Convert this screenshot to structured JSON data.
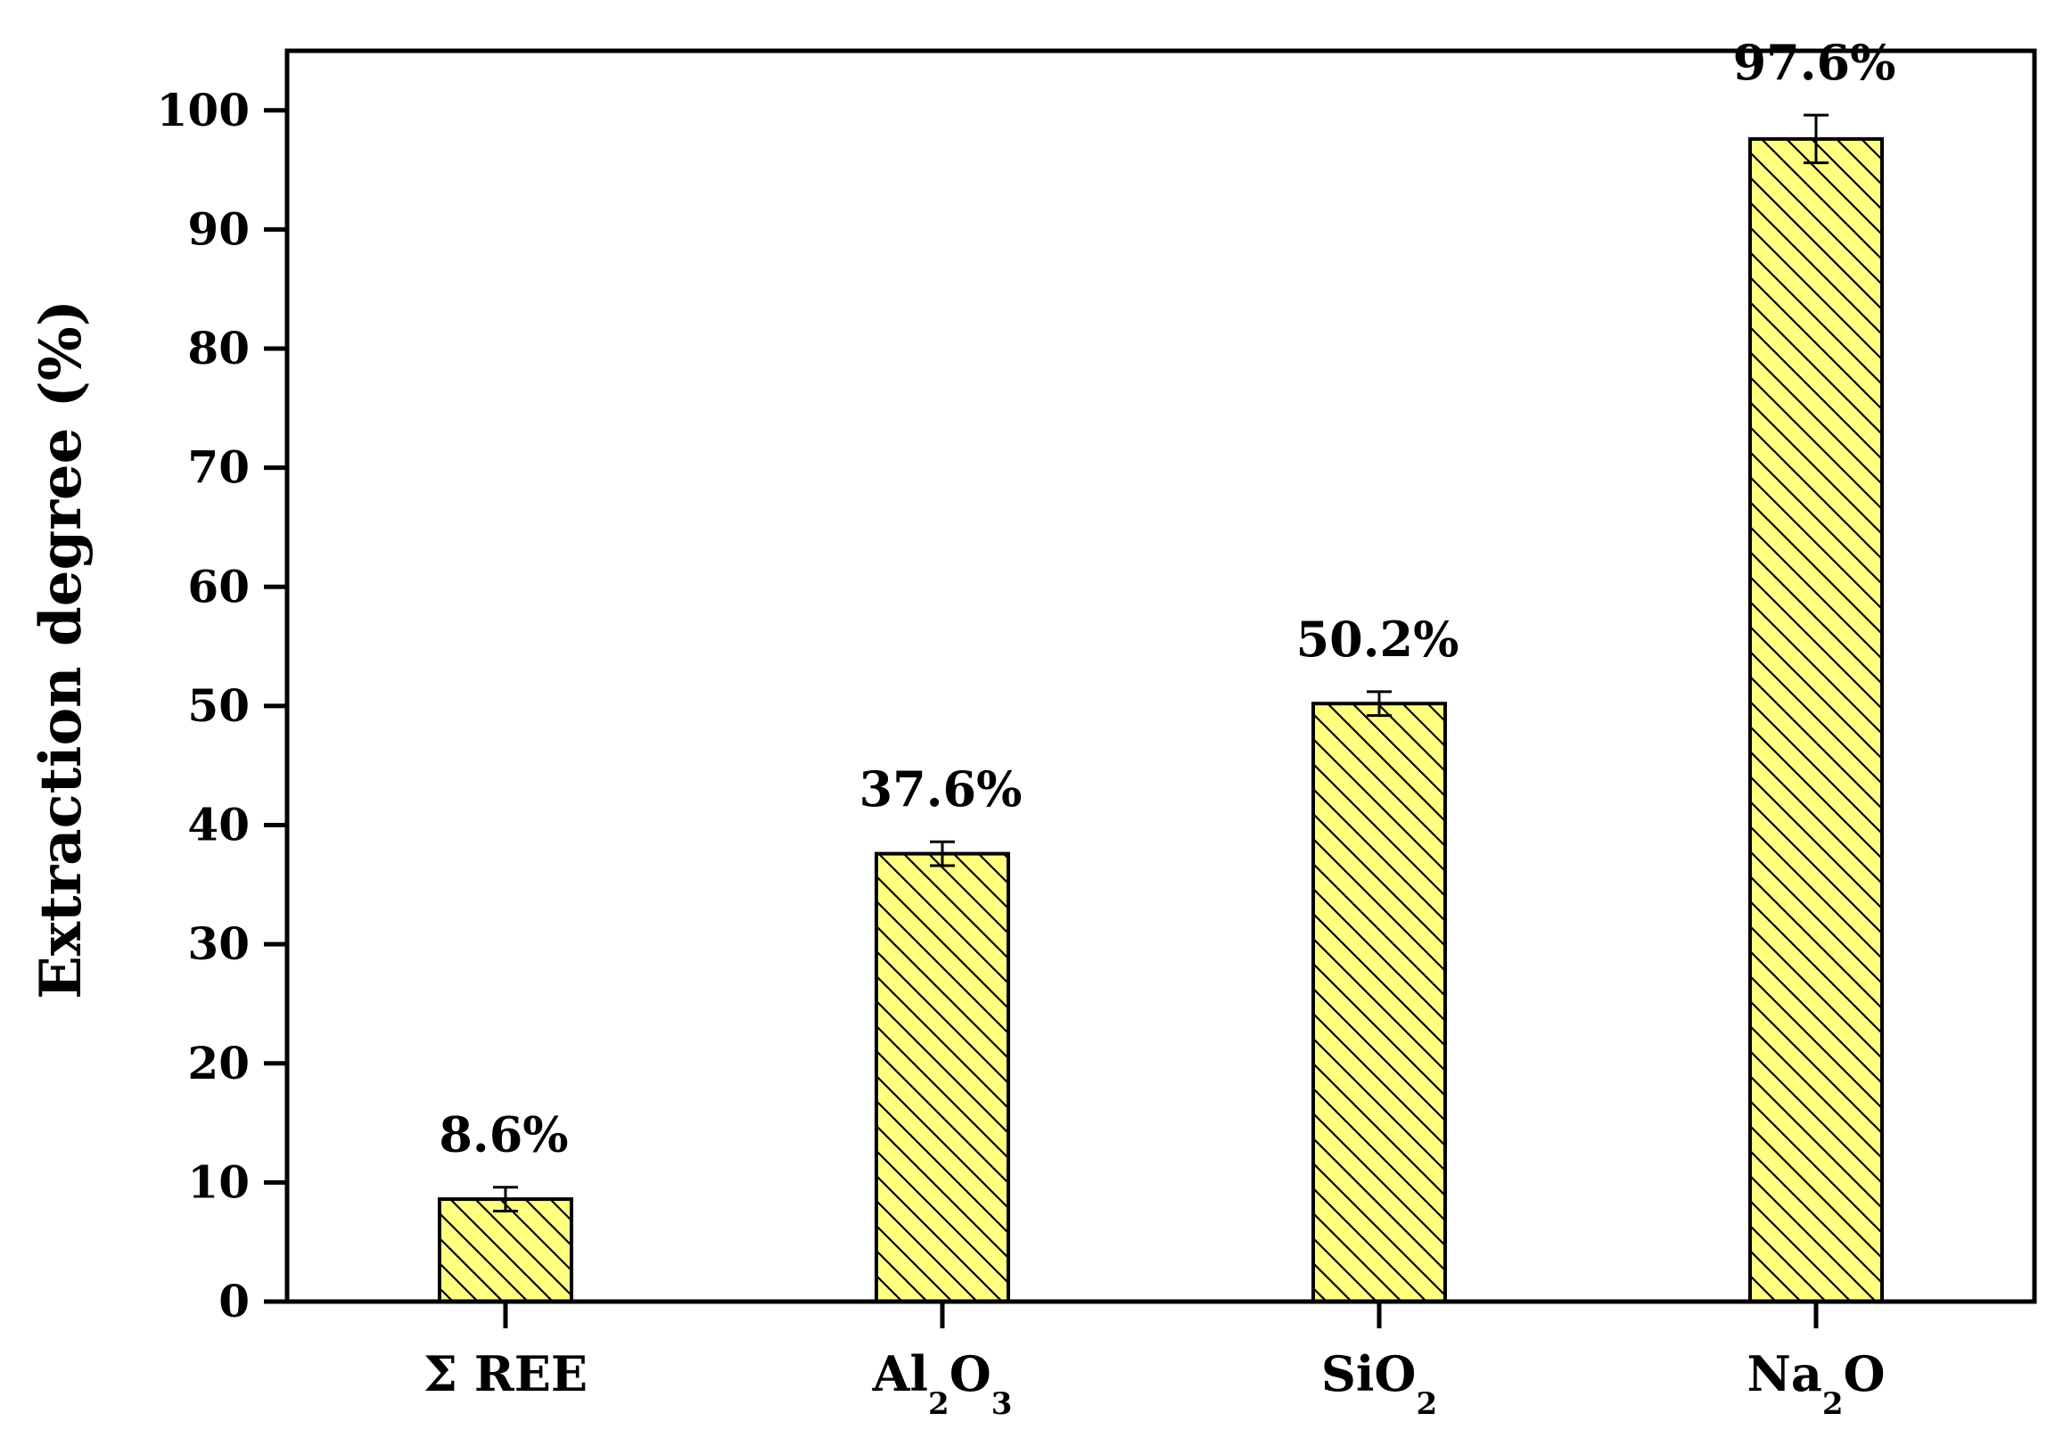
{
  "chart_data": {
    "type": "bar",
    "title": "",
    "xlabel": "",
    "ylabel": "Extraction degree (%)",
    "ylim": [
      0,
      105
    ],
    "yticks": [
      0,
      10,
      20,
      30,
      40,
      50,
      60,
      70,
      80,
      90,
      100
    ],
    "grid": false,
    "legend": "none",
    "bar_color": "#FFFF80",
    "hatch_color": "#000000",
    "categories": [
      {
        "label": "Σ REE",
        "base": "Σ REE",
        "parts": [
          {
            "t": "Σ REE",
            "sub": false
          }
        ]
      },
      {
        "label": "Al2O3",
        "base": "Al₂O₃",
        "parts": [
          {
            "t": "Al",
            "sub": false
          },
          {
            "t": "2",
            "sub": true
          },
          {
            "t": "O",
            "sub": false
          },
          {
            "t": "3",
            "sub": true
          }
        ]
      },
      {
        "label": "SiO2",
        "base": "SiO₂",
        "parts": [
          {
            "t": "SiO",
            "sub": false
          },
          {
            "t": "2",
            "sub": true
          }
        ]
      },
      {
        "label": "Na2O",
        "base": "Na₂O",
        "parts": [
          {
            "t": "Na",
            "sub": false
          },
          {
            "t": "2",
            "sub": true
          },
          {
            "t": "O",
            "sub": false
          }
        ]
      }
    ],
    "values": [
      8.6,
      37.6,
      50.2,
      97.6
    ],
    "errors": [
      1.0,
      1.0,
      1.0,
      2.0
    ],
    "data_labels": [
      "8.6%",
      "37.6%",
      "50.2%",
      "97.6%"
    ]
  }
}
